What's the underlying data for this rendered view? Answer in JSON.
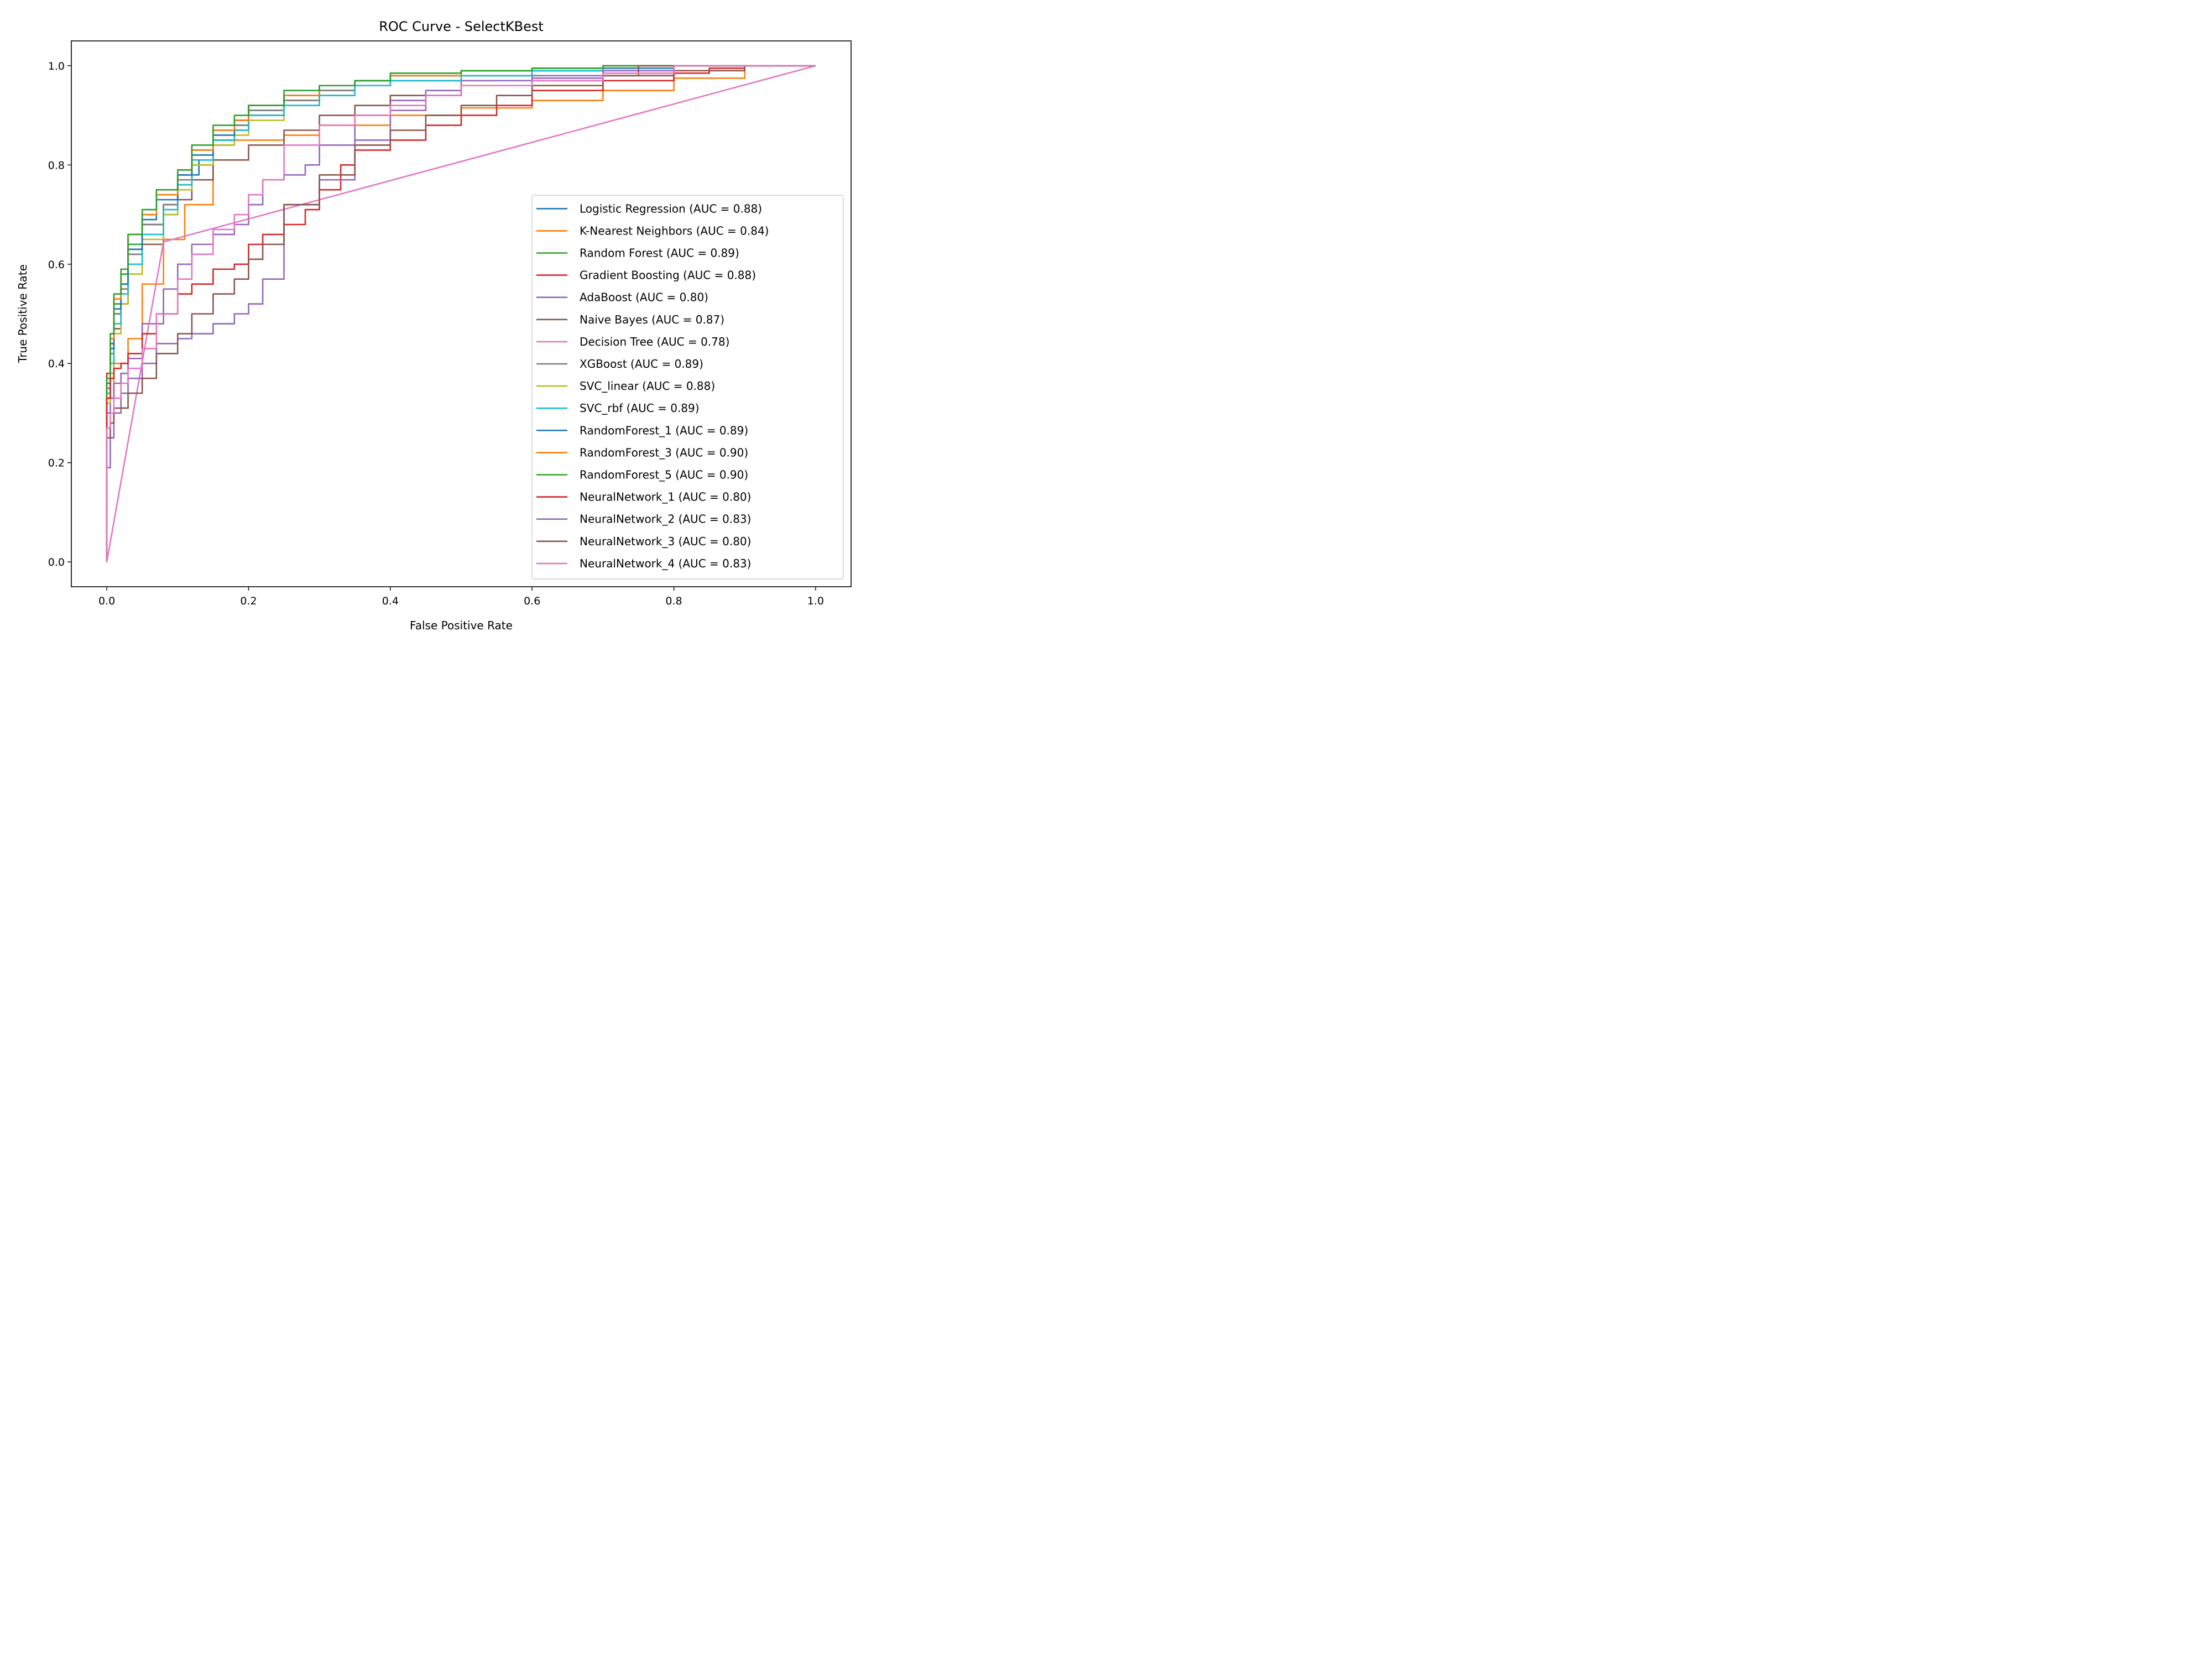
{
  "chart_data": {
    "type": "line",
    "title": "ROC Curve - SelectKBest",
    "xlabel": "False Positive Rate",
    "ylabel": "True Positive Rate",
    "xlim": [
      -0.05,
      1.05
    ],
    "ylim": [
      -0.05,
      1.05
    ],
    "xticks": [
      0.0,
      0.2,
      0.4,
      0.6,
      0.8,
      1.0
    ],
    "yticks": [
      0.0,
      0.2,
      0.4,
      0.6,
      0.8,
      1.0
    ],
    "xtick_labels": [
      "0.0",
      "0.2",
      "0.4",
      "0.6",
      "0.8",
      "1.0"
    ],
    "ytick_labels": [
      "0.0",
      "0.2",
      "0.4",
      "0.6",
      "0.8",
      "1.0"
    ],
    "grid": false,
    "legend_position": "lower right",
    "series": [
      {
        "name": "Logistic Regression (AUC = 0.88)",
        "color": "#1f77b4",
        "x": [
          0,
          0,
          0.005,
          0.01,
          0.02,
          0.03,
          0.05,
          0.08,
          0.1,
          0.13,
          0.15,
          0.18,
          0.2,
          0.25,
          0.3,
          0.35,
          0.4,
          0.5,
          0.6,
          0.7,
          0.8,
          1.0
        ],
        "y": [
          0,
          0.28,
          0.35,
          0.42,
          0.5,
          0.56,
          0.63,
          0.68,
          0.72,
          0.78,
          0.81,
          0.85,
          0.88,
          0.91,
          0.93,
          0.95,
          0.96,
          0.97,
          0.98,
          0.99,
          0.995,
          1.0
        ]
      },
      {
        "name": "K-Nearest Neighbors (AUC = 0.84)",
        "color": "#ff7f0e",
        "x": [
          0,
          0,
          0.01,
          0.03,
          0.05,
          0.08,
          0.11,
          0.15,
          0.25,
          0.3,
          0.4,
          0.5,
          0.6,
          0.7,
          0.8,
          0.9,
          1.0
        ],
        "y": [
          0,
          0.27,
          0.33,
          0.4,
          0.45,
          0.56,
          0.65,
          0.72,
          0.85,
          0.86,
          0.88,
          0.9,
          0.915,
          0.93,
          0.95,
          0.975,
          1.0
        ]
      },
      {
        "name": "Random Forest (AUC = 0.89)",
        "color": "#2ca02c",
        "x": [
          0,
          0,
          0.005,
          0.01,
          0.02,
          0.03,
          0.05,
          0.07,
          0.1,
          0.12,
          0.15,
          0.18,
          0.2,
          0.25,
          0.3,
          0.35,
          0.4,
          0.5,
          0.6,
          0.7,
          1.0
        ],
        "y": [
          0,
          0.26,
          0.36,
          0.44,
          0.52,
          0.58,
          0.64,
          0.7,
          0.74,
          0.78,
          0.83,
          0.87,
          0.89,
          0.91,
          0.94,
          0.96,
          0.97,
          0.98,
          0.99,
          0.995,
          1.0
        ]
      },
      {
        "name": "Gradient Boosting (AUC = 0.88)",
        "color": "#d62728",
        "x": [
          0,
          0,
          0.005,
          0.01,
          0.02,
          0.03,
          0.05,
          0.08,
          0.1,
          0.12,
          0.15,
          0.18,
          0.2,
          0.25,
          0.3,
          0.35,
          0.4,
          0.5,
          0.6,
          0.7,
          0.85,
          0.9,
          1.0
        ],
        "y": [
          0,
          0.3,
          0.38,
          0.44,
          0.5,
          0.55,
          0.62,
          0.68,
          0.72,
          0.76,
          0.8,
          0.84,
          0.87,
          0.9,
          0.93,
          0.95,
          0.97,
          0.98,
          0.99,
          0.99,
          0.985,
          0.995,
          1.0
        ]
      },
      {
        "name": "AdaBoost (AUC = 0.80)",
        "color": "#9467bd",
        "x": [
          0,
          0,
          0.005,
          0.01,
          0.02,
          0.03,
          0.05,
          0.08,
          0.1,
          0.12,
          0.15,
          0.18,
          0.2,
          0.22,
          0.25,
          0.28,
          0.3,
          0.35,
          0.4,
          0.45,
          0.5,
          0.6,
          0.7,
          0.8,
          1.0
        ],
        "y": [
          0,
          0.22,
          0.3,
          0.33,
          0.36,
          0.38,
          0.41,
          0.48,
          0.55,
          0.6,
          0.64,
          0.66,
          0.68,
          0.72,
          0.77,
          0.78,
          0.8,
          0.84,
          0.9,
          0.93,
          0.95,
          0.97,
          0.98,
          0.99,
          1.0
        ]
      },
      {
        "name": "Naive Bayes (AUC = 0.87)",
        "color": "#8c564b",
        "x": [
          0,
          0,
          0.005,
          0.01,
          0.02,
          0.03,
          0.05,
          0.08,
          0.1,
          0.12,
          0.15,
          0.2,
          0.25,
          0.3,
          0.35,
          0.4,
          0.5,
          0.6,
          0.7,
          0.8,
          0.9,
          1.0
        ],
        "y": [
          0,
          0.25,
          0.33,
          0.4,
          0.47,
          0.52,
          0.58,
          0.64,
          0.7,
          0.73,
          0.77,
          0.81,
          0.84,
          0.87,
          0.9,
          0.92,
          0.94,
          0.96,
          0.97,
          0.98,
          0.99,
          1.0
        ]
      },
      {
        "name": "Decision Tree (AUC = 0.78)",
        "color": "#e377c2",
        "x": [
          0,
          0.08,
          1.0
        ],
        "y": [
          0,
          0.645,
          1.0
        ]
      },
      {
        "name": "XGBoost (AUC = 0.89)",
        "color": "#7f7f7f",
        "x": [
          0,
          0,
          0.005,
          0.01,
          0.02,
          0.03,
          0.05,
          0.08,
          0.1,
          0.12,
          0.15,
          0.18,
          0.2,
          0.25,
          0.3,
          0.35,
          0.4,
          0.5,
          0.6,
          0.7,
          1.0
        ],
        "y": [
          0,
          0.27,
          0.35,
          0.42,
          0.5,
          0.55,
          0.62,
          0.68,
          0.72,
          0.77,
          0.82,
          0.85,
          0.88,
          0.91,
          0.93,
          0.95,
          0.96,
          0.97,
          0.98,
          0.99,
          1.0
        ]
      },
      {
        "name": "SVC_linear (AUC = 0.88)",
        "color": "#bcbd22",
        "x": [
          0,
          0,
          0.005,
          0.01,
          0.02,
          0.03,
          0.05,
          0.08,
          0.1,
          0.12,
          0.15,
          0.18,
          0.2,
          0.25,
          0.3,
          0.35,
          0.4,
          0.5,
          0.6,
          0.7,
          1.0
        ],
        "y": [
          0,
          0.26,
          0.32,
          0.38,
          0.46,
          0.52,
          0.58,
          0.65,
          0.7,
          0.75,
          0.8,
          0.84,
          0.86,
          0.89,
          0.92,
          0.94,
          0.96,
          0.97,
          0.98,
          0.99,
          1.0
        ]
      },
      {
        "name": "SVC_rbf (AUC = 0.89)",
        "color": "#17becf",
        "x": [
          0,
          0,
          0.005,
          0.01,
          0.02,
          0.03,
          0.05,
          0.08,
          0.1,
          0.12,
          0.15,
          0.18,
          0.2,
          0.25,
          0.3,
          0.35,
          0.4,
          0.5,
          0.6,
          0.7,
          1.0
        ],
        "y": [
          0,
          0.27,
          0.34,
          0.4,
          0.48,
          0.54,
          0.6,
          0.66,
          0.71,
          0.76,
          0.81,
          0.85,
          0.87,
          0.9,
          0.92,
          0.94,
          0.96,
          0.97,
          0.98,
          0.99,
          1.0
        ]
      },
      {
        "name": "RandomForest_1 (AUC = 0.89)",
        "color": "#1f77b4",
        "x": [
          0,
          0,
          0.005,
          0.01,
          0.02,
          0.03,
          0.05,
          0.07,
          0.1,
          0.12,
          0.15,
          0.18,
          0.2,
          0.25,
          0.3,
          0.35,
          0.4,
          0.5,
          0.6,
          0.7,
          1.0
        ],
        "y": [
          0,
          0.28,
          0.36,
          0.43,
          0.51,
          0.56,
          0.63,
          0.69,
          0.73,
          0.78,
          0.82,
          0.86,
          0.89,
          0.92,
          0.94,
          0.96,
          0.97,
          0.98,
          0.99,
          0.995,
          1.0
        ]
      },
      {
        "name": "RandomForest_3 (AUC = 0.90)",
        "color": "#ff7f0e",
        "x": [
          0,
          0,
          0.005,
          0.01,
          0.02,
          0.03,
          0.05,
          0.07,
          0.1,
          0.12,
          0.15,
          0.18,
          0.2,
          0.25,
          0.3,
          0.35,
          0.4,
          0.5,
          0.6,
          0.7,
          1.0
        ],
        "y": [
          0,
          0.3,
          0.37,
          0.45,
          0.53,
          0.59,
          0.66,
          0.7,
          0.74,
          0.79,
          0.83,
          0.87,
          0.89,
          0.92,
          0.94,
          0.96,
          0.97,
          0.98,
          0.99,
          0.995,
          1.0
        ]
      },
      {
        "name": "RandomForest_5 (AUC = 0.90)",
        "color": "#2ca02c",
        "x": [
          0,
          0,
          0.005,
          0.01,
          0.02,
          0.03,
          0.05,
          0.07,
          0.1,
          0.12,
          0.15,
          0.18,
          0.2,
          0.25,
          0.3,
          0.35,
          0.4,
          0.5,
          0.6,
          0.7,
          1.0
        ],
        "y": [
          0,
          0.29,
          0.37,
          0.46,
          0.54,
          0.59,
          0.66,
          0.71,
          0.75,
          0.79,
          0.84,
          0.88,
          0.9,
          0.92,
          0.95,
          0.96,
          0.97,
          0.985,
          0.99,
          0.995,
          1.0
        ]
      },
      {
        "name": "NeuralNetwork_1 (AUC = 0.80)",
        "color": "#d62728",
        "x": [
          0,
          0,
          0.005,
          0.01,
          0.02,
          0.03,
          0.05,
          0.07,
          0.1,
          0.12,
          0.15,
          0.18,
          0.2,
          0.22,
          0.25,
          0.28,
          0.3,
          0.33,
          0.35,
          0.4,
          0.45,
          0.5,
          0.55,
          0.6,
          0.7,
          0.8,
          1.0
        ],
        "y": [
          0,
          0.25,
          0.33,
          0.37,
          0.39,
          0.4,
          0.42,
          0.46,
          0.5,
          0.54,
          0.56,
          0.59,
          0.6,
          0.64,
          0.66,
          0.68,
          0.71,
          0.75,
          0.8,
          0.83,
          0.85,
          0.88,
          0.9,
          0.92,
          0.95,
          0.97,
          1.0
        ]
      },
      {
        "name": "NeuralNetwork_2 (AUC = 0.83)",
        "color": "#9467bd",
        "x": [
          0,
          0,
          0.005,
          0.01,
          0.02,
          0.03,
          0.05,
          0.07,
          0.1,
          0.12,
          0.15,
          0.18,
          0.2,
          0.22,
          0.25,
          0.3,
          0.35,
          0.4,
          0.45,
          0.5,
          0.6,
          0.7,
          0.8,
          1.0
        ],
        "y": [
          0,
          0.18,
          0.19,
          0.25,
          0.3,
          0.34,
          0.37,
          0.4,
          0.44,
          0.45,
          0.46,
          0.48,
          0.5,
          0.52,
          0.57,
          0.72,
          0.77,
          0.85,
          0.91,
          0.94,
          0.96,
          0.975,
          0.99,
          1.0
        ]
      },
      {
        "name": "NeuralNetwork_3 (AUC = 0.80)",
        "color": "#8c564b",
        "x": [
          0,
          0,
          0.005,
          0.01,
          0.02,
          0.03,
          0.05,
          0.07,
          0.1,
          0.12,
          0.15,
          0.18,
          0.2,
          0.22,
          0.25,
          0.3,
          0.35,
          0.4,
          0.45,
          0.5,
          0.55,
          0.6,
          0.7,
          0.75,
          1.0
        ],
        "y": [
          0,
          0.2,
          0.25,
          0.28,
          0.31,
          0.31,
          0.34,
          0.37,
          0.42,
          0.46,
          0.5,
          0.54,
          0.57,
          0.61,
          0.64,
          0.72,
          0.78,
          0.84,
          0.87,
          0.9,
          0.92,
          0.94,
          0.96,
          0.98,
          1.0
        ]
      },
      {
        "name": "NeuralNetwork_4 (AUC = 0.83)",
        "color": "#e377c2",
        "x": [
          0,
          0,
          0.005,
          0.01,
          0.02,
          0.03,
          0.05,
          0.07,
          0.1,
          0.12,
          0.15,
          0.18,
          0.2,
          0.22,
          0.25,
          0.3,
          0.35,
          0.4,
          0.45,
          0.5,
          0.6,
          0.7,
          0.8,
          1.0
        ],
        "y": [
          0,
          0.24,
          0.27,
          0.3,
          0.33,
          0.36,
          0.39,
          0.43,
          0.5,
          0.57,
          0.62,
          0.67,
          0.7,
          0.74,
          0.77,
          0.84,
          0.88,
          0.9,
          0.92,
          0.94,
          0.96,
          0.97,
          0.985,
          1.0
        ]
      }
    ]
  }
}
